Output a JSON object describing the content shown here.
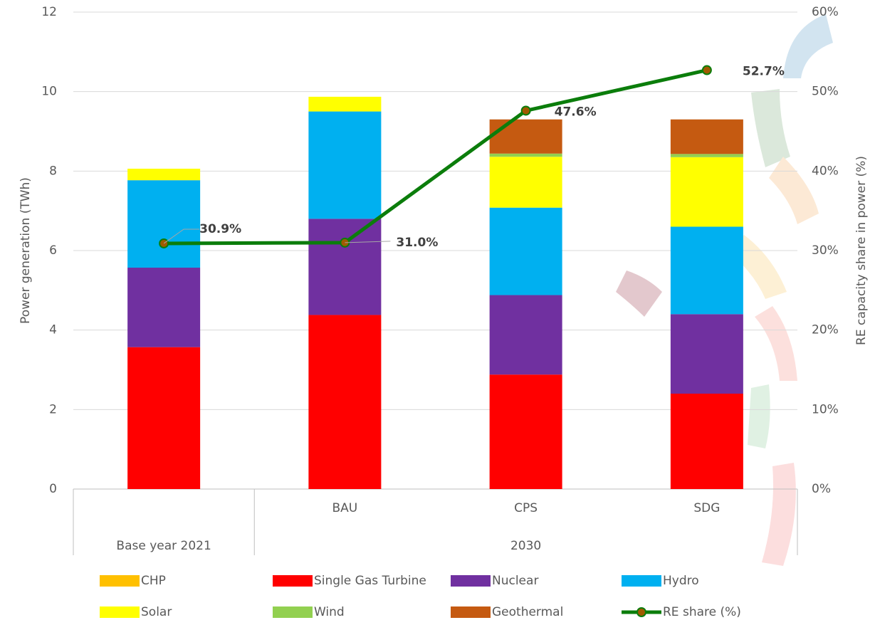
{
  "chart_data": {
    "type": "bar",
    "y_label": "Power generation (TWh)",
    "y2_label": "RE capacity share in power (%)",
    "categories": [
      null,
      "BAU",
      "CPS",
      "SDG"
    ],
    "group_labels": [
      "Base year 2021",
      "2030"
    ],
    "ylim": [
      0,
      12
    ],
    "yticks": [
      0,
      2,
      4,
      6,
      8,
      10,
      12
    ],
    "y2lim": [
      0,
      60
    ],
    "y2ticks": [
      {
        "value": 0,
        "label": "0%"
      },
      {
        "value": 10,
        "label": "10%"
      },
      {
        "value": 20,
        "label": "20%"
      },
      {
        "value": 30,
        "label": "30%"
      },
      {
        "value": 40,
        "label": "40%"
      },
      {
        "value": 50,
        "label": "50%"
      },
      {
        "value": 60,
        "label": "60%"
      }
    ],
    "grid": true,
    "series": [
      {
        "name": "CHP",
        "color": "#ffc000",
        "values": [
          0,
          0,
          0,
          0
        ]
      },
      {
        "name": "Single Gas Turbine",
        "color": "#ff0000",
        "values": [
          3.57,
          4.38,
          2.88,
          2.4
        ]
      },
      {
        "name": "Nuclear",
        "color": "#7030a0",
        "values": [
          2.0,
          2.42,
          2.0,
          2.0
        ]
      },
      {
        "name": "Hydro",
        "color": "#00b0f0",
        "values": [
          2.2,
          2.7,
          2.2,
          2.2
        ]
      },
      {
        "name": "Solar",
        "color": "#ffff00",
        "values": [
          0.29,
          0.37,
          1.28,
          1.75
        ]
      },
      {
        "name": "Wind",
        "color": "#92d050",
        "values": [
          0,
          0,
          0.08,
          0.08
        ]
      },
      {
        "name": "Geothermal",
        "color": "#c55a11",
        "values": [
          0,
          0,
          0.86,
          0.87
        ]
      },
      {
        "name": "RE share (%)",
        "type": "line",
        "axis": "y2",
        "color": "#0b7d0b",
        "marker_color": "#a05a00",
        "values": [
          30.9,
          31.0,
          47.6,
          52.7
        ],
        "value_labels": [
          "30.9%",
          "31.0%",
          "47.6%",
          "52.7%"
        ]
      }
    ]
  }
}
